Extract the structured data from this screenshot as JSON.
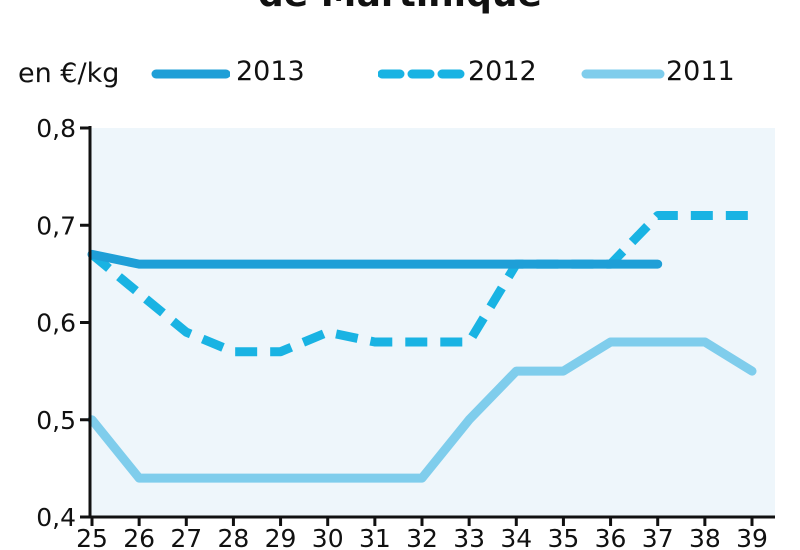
{
  "title": "de Martinique",
  "unit_label": "en €/kg",
  "colors": {
    "series_2013": "#1f9fd7",
    "series_2012": "#19b3e3",
    "series_2011": "#7fcdec",
    "plot_background": "#eef6fb",
    "axis": "#111111"
  },
  "chart_data": {
    "type": "line",
    "title": "de Martinique",
    "ylabel": "en €/kg",
    "xlabel": "",
    "x": [
      25,
      26,
      27,
      28,
      29,
      30,
      31,
      32,
      33,
      34,
      35,
      36,
      37,
      38,
      39
    ],
    "xlim": [
      25,
      39
    ],
    "ylim": [
      0.4,
      0.8
    ],
    "yticks": [
      0.4,
      0.5,
      0.6,
      0.7,
      0.8
    ],
    "ytick_labels": [
      "0,4",
      "0,5",
      "0,6",
      "0,7",
      "0,8"
    ],
    "grid": false,
    "legend_position": "top",
    "series": [
      {
        "name": "2013",
        "style": "solid",
        "x": [
          25,
          26,
          27,
          28,
          29,
          30,
          31,
          32,
          33,
          34,
          35,
          36,
          37
        ],
        "values": [
          0.67,
          0.66,
          0.66,
          0.66,
          0.66,
          0.66,
          0.66,
          0.66,
          0.66,
          0.66,
          0.66,
          0.66,
          0.66
        ]
      },
      {
        "name": "2012",
        "style": "dashed",
        "x": [
          25,
          26,
          27,
          28,
          29,
          30,
          31,
          32,
          33,
          34,
          35,
          36,
          37,
          38,
          39
        ],
        "values": [
          0.67,
          0.63,
          0.59,
          0.57,
          0.57,
          0.59,
          0.58,
          0.58,
          0.58,
          0.66,
          0.66,
          0.66,
          0.71,
          0.71,
          0.71
        ]
      },
      {
        "name": "2011",
        "style": "solid",
        "x": [
          25,
          26,
          27,
          28,
          29,
          30,
          31,
          32,
          33,
          34,
          35,
          36,
          37,
          38,
          39
        ],
        "values": [
          0.5,
          0.44,
          0.44,
          0.44,
          0.44,
          0.44,
          0.44,
          0.44,
          0.5,
          0.55,
          0.55,
          0.58,
          0.58,
          0.58,
          0.55
        ]
      }
    ]
  }
}
